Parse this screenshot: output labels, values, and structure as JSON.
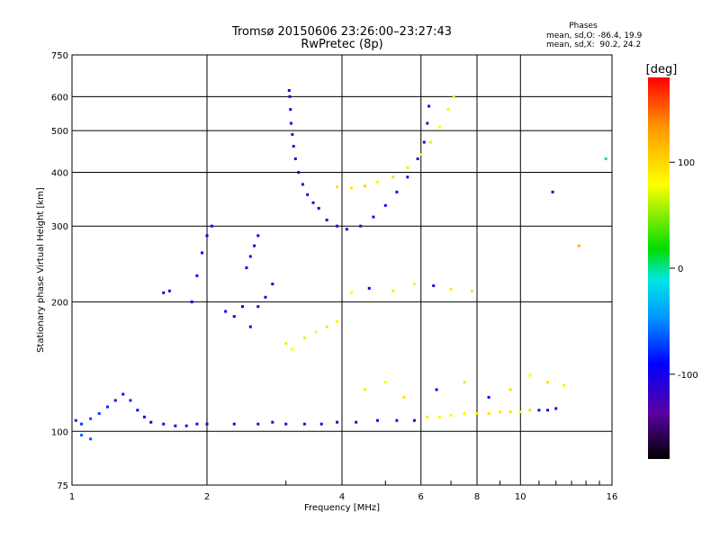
{
  "chart_data": {
    "type": "scatter",
    "title": "Tromsø 20150606 23:26:00–23:27:43",
    "subtitle": "RwPretec (8p)",
    "xlabel": "Frequency [MHz]",
    "ylabel": "Stationary phase Virtual Height [km]",
    "xscale": "log",
    "yscale": "log",
    "xlim": [
      1,
      16
    ],
    "ylim": [
      75,
      750
    ],
    "xticks": [
      1,
      2,
      4,
      6,
      8,
      10,
      16
    ],
    "xtick_labels": [
      "1",
      "2",
      "4",
      "6",
      "8",
      "10",
      "16"
    ],
    "yticks": [
      75,
      100,
      200,
      300,
      400,
      500,
      600,
      750
    ],
    "ytick_labels": [
      "75",
      "100",
      "200",
      "300",
      "400",
      "500",
      "600",
      "750"
    ],
    "grid": true,
    "stats": {
      "heading": "Phases",
      "o_line": "mean, sd,O: -86.4, 19.9",
      "x_line": "mean, sd,X:  90.2, 24.2"
    },
    "colorbar": {
      "label": "[deg]",
      "min": -180,
      "max": 180,
      "ticks": [
        100,
        0,
        -100
      ],
      "tick_labels": [
        "100",
        "0",
        "-100"
      ],
      "stops": [
        "#000000",
        "#5a00a0",
        "#0000ff",
        "#0096ff",
        "#00e6e6",
        "#00dc00",
        "#ffff00",
        "#ff9600",
        "#ff0000"
      ]
    },
    "series": [
      {
        "values": [
          [
            1.02,
            106,
            -80
          ],
          [
            1.05,
            104,
            -75
          ],
          [
            1.1,
            107,
            -70
          ],
          [
            1.15,
            110,
            -70
          ],
          [
            1.2,
            114,
            -80
          ],
          [
            1.25,
            118,
            -85
          ],
          [
            1.3,
            122,
            -85
          ],
          [
            1.35,
            118,
            -80
          ],
          [
            1.4,
            112,
            -90
          ],
          [
            1.45,
            108,
            -95
          ],
          [
            1.5,
            105,
            -100
          ],
          [
            1.6,
            104,
            -110
          ],
          [
            1.7,
            103,
            -110
          ],
          [
            1.8,
            103,
            -112
          ],
          [
            1.9,
            104,
            -110
          ],
          [
            2.0,
            104,
            -110
          ],
          [
            2.3,
            104,
            -110
          ],
          [
            2.6,
            104,
            -110
          ],
          [
            2.8,
            105,
            -110
          ],
          [
            3.0,
            104,
            -110
          ],
          [
            3.3,
            104,
            -110
          ],
          [
            3.6,
            104,
            -108
          ],
          [
            3.9,
            105,
            -110
          ],
          [
            4.3,
            105,
            -110
          ],
          [
            4.8,
            106,
            -105
          ],
          [
            5.3,
            106,
            -100
          ],
          [
            5.8,
            106,
            -95
          ],
          [
            6.2,
            108,
            90
          ],
          [
            6.6,
            108,
            85
          ],
          [
            7.0,
            109,
            80
          ],
          [
            7.5,
            110,
            75
          ],
          [
            8.0,
            110,
            90
          ],
          [
            8.5,
            110,
            95
          ],
          [
            9.0,
            111,
            90
          ],
          [
            9.5,
            111,
            95
          ],
          [
            10.0,
            111,
            85
          ],
          [
            10.5,
            112,
            95
          ],
          [
            11.0,
            112,
            -100
          ],
          [
            11.5,
            112,
            -110
          ],
          [
            12.0,
            113,
            -105
          ],
          [
            1.05,
            98,
            -60
          ],
          [
            1.1,
            96,
            -65
          ],
          [
            1.6,
            210,
            -110
          ],
          [
            1.65,
            212,
            -108
          ],
          [
            1.85,
            200,
            -90
          ],
          [
            1.9,
            230,
            -95
          ],
          [
            1.95,
            260,
            -100
          ],
          [
            2.0,
            285,
            -95
          ],
          [
            2.05,
            300,
            -105
          ],
          [
            2.2,
            190,
            -100
          ],
          [
            2.3,
            185,
            -105
          ],
          [
            2.4,
            195,
            -95
          ],
          [
            2.5,
            175,
            -100
          ],
          [
            2.6,
            195,
            -105
          ],
          [
            2.7,
            205,
            -110
          ],
          [
            2.8,
            220,
            -100
          ],
          [
            2.55,
            270,
            -100
          ],
          [
            2.6,
            285,
            -95
          ],
          [
            2.5,
            255,
            -105
          ],
          [
            2.45,
            240,
            -98
          ],
          [
            3.05,
            620,
            -110
          ],
          [
            3.06,
            600,
            -110
          ],
          [
            3.07,
            560,
            -110
          ],
          [
            3.08,
            520,
            -110
          ],
          [
            3.1,
            490,
            -110
          ],
          [
            3.12,
            460,
            -110
          ],
          [
            3.15,
            430,
            -110
          ],
          [
            3.2,
            400,
            -115
          ],
          [
            3.27,
            375,
            -110
          ],
          [
            3.35,
            355,
            -110
          ],
          [
            3.45,
            340,
            -105
          ],
          [
            3.55,
            330,
            -105
          ],
          [
            3.7,
            310,
            -110
          ],
          [
            3.9,
            300,
            -110
          ],
          [
            4.1,
            295,
            -110
          ],
          [
            4.4,
            300,
            -110
          ],
          [
            4.7,
            315,
            -105
          ],
          [
            5.0,
            335,
            -105
          ],
          [
            5.3,
            360,
            -110
          ],
          [
            5.6,
            390,
            -110
          ],
          [
            5.9,
            430,
            -110
          ],
          [
            6.1,
            470,
            -110
          ],
          [
            6.2,
            520,
            -110
          ],
          [
            6.25,
            570,
            -110
          ],
          [
            3.9,
            370,
            95
          ],
          [
            4.2,
            368,
            90
          ],
          [
            4.5,
            372,
            100
          ],
          [
            4.8,
            380,
            85
          ],
          [
            5.2,
            390,
            100
          ],
          [
            5.6,
            410,
            90
          ],
          [
            6.0,
            440,
            85
          ],
          [
            6.3,
            470,
            95
          ],
          [
            6.6,
            510,
            80
          ],
          [
            6.9,
            560,
            75
          ],
          [
            7.1,
            600,
            70
          ],
          [
            3.0,
            160,
            70
          ],
          [
            3.1,
            155,
            80
          ],
          [
            3.3,
            165,
            90
          ],
          [
            3.5,
            170,
            85
          ],
          [
            3.7,
            175,
            95
          ],
          [
            3.9,
            180,
            85
          ],
          [
            4.5,
            125,
            90
          ],
          [
            5.0,
            130,
            80
          ],
          [
            5.5,
            120,
            95
          ],
          [
            6.5,
            125,
            -105
          ],
          [
            7.5,
            130,
            90
          ],
          [
            8.5,
            120,
            -100
          ],
          [
            9.5,
            125,
            95
          ],
          [
            10.5,
            135,
            80
          ],
          [
            11.5,
            130,
            95
          ],
          [
            12.5,
            128,
            85
          ],
          [
            4.2,
            210,
            80
          ],
          [
            4.6,
            215,
            -100
          ],
          [
            5.2,
            212,
            90
          ],
          [
            5.8,
            220,
            85
          ],
          [
            6.4,
            218,
            -110
          ],
          [
            7.0,
            214,
            90
          ],
          [
            7.8,
            212,
            95
          ],
          [
            11.8,
            360,
            -105
          ],
          [
            15.5,
            430,
            0
          ],
          [
            13.5,
            270,
            120
          ]
        ]
      }
    ]
  }
}
